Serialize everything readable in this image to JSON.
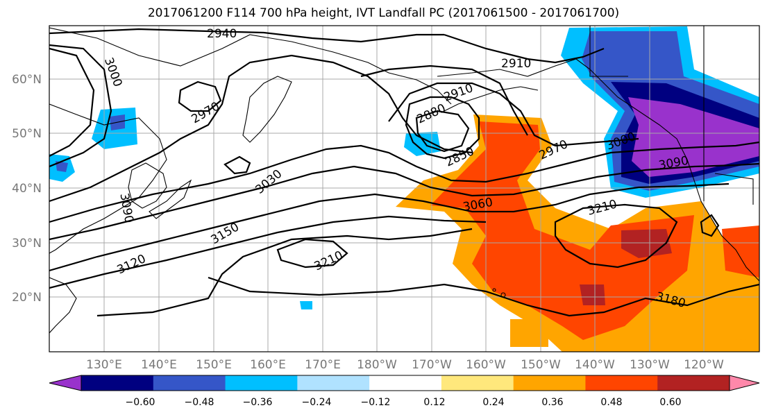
{
  "title": "2017061200 F114 700 hPa height, IVT Landfall PC (2017061500 - 2017061700)",
  "map": {
    "lon_ticks": [
      "130°E",
      "140°E",
      "150°E",
      "160°E",
      "170°E",
      "180°W",
      "170°W",
      "160°W",
      "150°W",
      "140°W",
      "130°W",
      "120°W"
    ],
    "lat_ticks": [
      "60°N",
      "50°N",
      "40°N",
      "30°N",
      "20°N"
    ],
    "grid": true,
    "contour_labels": [
      "2940",
      "2910",
      "3000",
      "2970",
      "2910",
      "2880",
      "2850",
      "2970",
      "3000",
      "3090",
      "3030",
      "3060",
      "3090",
      "3150",
      "3210",
      "3120",
      "3210",
      "3180"
    ]
  },
  "colorbar": {
    "levels": [
      "−0.60",
      "−0.48",
      "−0.36",
      "−0.24",
      "−0.12",
      "0.12",
      "0.24",
      "0.36",
      "0.48",
      "0.60"
    ],
    "colors": [
      "#9932CC",
      "#000080",
      "#3556C8",
      "#00BFFF",
      "#B0E2FF",
      "#FFFFFF",
      "#FFE87C",
      "#FFA500",
      "#FF4500",
      "#B22222",
      "#FF88AA"
    ],
    "extend": "both"
  }
}
